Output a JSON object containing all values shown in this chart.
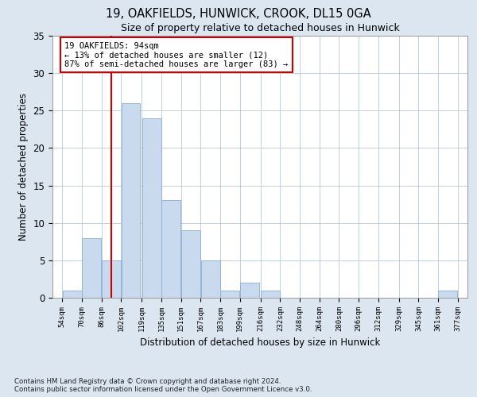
{
  "title1": "19, OAKFIELDS, HUNWICK, CROOK, DL15 0GA",
  "title2": "Size of property relative to detached houses in Hunwick",
  "xlabel": "Distribution of detached houses by size in Hunwick",
  "ylabel": "Number of detached properties",
  "bins": [
    54,
    70,
    86,
    102,
    119,
    135,
    151,
    167,
    183,
    199,
    216,
    232,
    248,
    264,
    280,
    296,
    312,
    329,
    345,
    361,
    377
  ],
  "counts": [
    1,
    8,
    5,
    26,
    24,
    13,
    9,
    5,
    1,
    2,
    1,
    0,
    0,
    0,
    0,
    0,
    0,
    0,
    0,
    1
  ],
  "bar_color": "#c9d9ee",
  "bar_edge_color": "#8bafd4",
  "vline_x": 94,
  "vline_color": "#cc0000",
  "annotation_text": "19 OAKFIELDS: 94sqm\n← 13% of detached houses are smaller (12)\n87% of semi-detached houses are larger (83) →",
  "annotation_box_color": "#ffffff",
  "annotation_box_edge": "#cc0000",
  "ylim": [
    0,
    35
  ],
  "yticks": [
    0,
    5,
    10,
    15,
    20,
    25,
    30,
    35
  ],
  "footnote": "Contains HM Land Registry data © Crown copyright and database right 2024.\nContains public sector information licensed under the Open Government Licence v3.0.",
  "background_color": "#dce6f1",
  "plot_bg_color": "#ffffff",
  "grid_color": "#b8c8dc"
}
